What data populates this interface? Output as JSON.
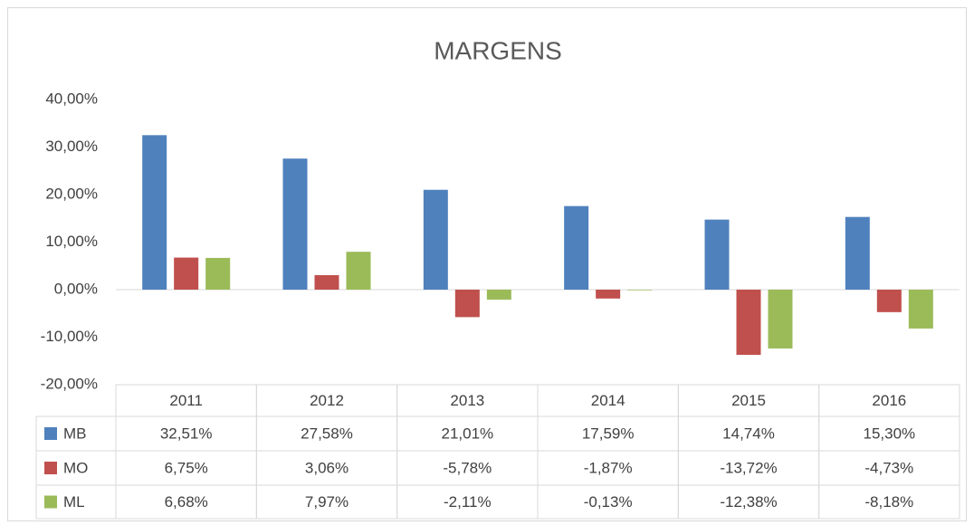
{
  "chart_data": {
    "type": "bar",
    "title": "MARGENS",
    "categories": [
      "2011",
      "2012",
      "2013",
      "2014",
      "2015",
      "2016"
    ],
    "series": [
      {
        "name": "MB",
        "color": "#4f81bd",
        "values": [
          32.51,
          27.58,
          21.01,
          17.59,
          14.74,
          15.3
        ],
        "value_labels": [
          "32,51%",
          "27,58%",
          "21,01%",
          "17,59%",
          "14,74%",
          "15,30%"
        ]
      },
      {
        "name": "MO",
        "color": "#c0504d",
        "values": [
          6.75,
          3.06,
          -5.78,
          -1.87,
          -13.72,
          -4.73
        ],
        "value_labels": [
          "6,75%",
          "3,06%",
          "-5,78%",
          "-1,87%",
          "-13,72%",
          "-4,73%"
        ]
      },
      {
        "name": "ML",
        "color": "#9bbb59",
        "values": [
          6.68,
          7.97,
          -2.11,
          -0.13,
          -12.38,
          -8.18
        ],
        "value_labels": [
          "6,68%",
          "7,97%",
          "-2,11%",
          "-0,13%",
          "-12,38%",
          "-8,18%"
        ]
      }
    ],
    "ylim": [
      -20,
      40
    ],
    "yticks": [
      {
        "value": -20,
        "label": "-20,00%"
      },
      {
        "value": -10,
        "label": "-10,00%"
      },
      {
        "value": 0,
        "label": "0,00%"
      },
      {
        "value": 10,
        "label": "10,00%"
      },
      {
        "value": 20,
        "label": "20,00%"
      },
      {
        "value": 30,
        "label": "30,00%"
      },
      {
        "value": 40,
        "label": "40,00%"
      }
    ],
    "grid": false
  }
}
